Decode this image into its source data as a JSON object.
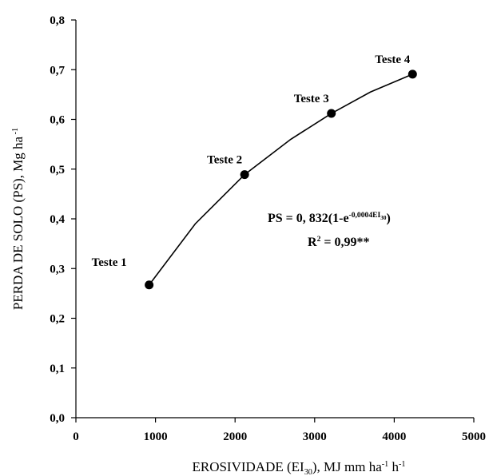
{
  "chart_data": {
    "type": "scatter",
    "x_label": [
      {
        "text": "EROSIVIDADE (EI"
      },
      {
        "text": "30",
        "baseline": "sub"
      },
      {
        "text": "), MJ mm ha"
      },
      {
        "text": "-1",
        "baseline": "super"
      },
      {
        "text": " h"
      },
      {
        "text": "-1",
        "baseline": "super"
      }
    ],
    "y_label": [
      {
        "text": "PERDA DE SOLO (PS), Mg ha"
      },
      {
        "text": " -1",
        "baseline": "super"
      }
    ],
    "annotations": [
      [
        {
          "text": "PS = 0, 832(1-e"
        },
        {
          "text": "-0,0004EI",
          "baseline": "super"
        },
        {
          "text": "30",
          "baseline": "supsub"
        },
        {
          "text": ")"
        }
      ],
      [
        {
          "text": "R"
        },
        {
          "text": "2",
          "baseline": "super"
        },
        {
          "text": " = 0,99**"
        }
      ]
    ],
    "x": [
      920,
      2120,
      3210,
      4230
    ],
    "values": [
      0.267,
      0.489,
      0.612,
      0.691
    ],
    "value_labels": [
      "Teste 1",
      "Teste 2",
      "Teste 3",
      "Teste 4"
    ],
    "color": "#000000",
    "fit": {
      "x": [
        920,
        1500,
        2120,
        2700,
        3210,
        3700,
        4230
      ],
      "values": [
        0.267,
        0.39,
        0.489,
        0.56,
        0.612,
        0.655,
        0.691
      ],
      "color": "#000000"
    },
    "xlim": [
      0,
      5000
    ],
    "xticks": [
      0,
      1000,
      2000,
      3000,
      4000,
      5000
    ],
    "ylim": [
      0,
      0.8
    ],
    "yticks": [
      {
        "value": 0,
        "label": "0,0"
      },
      {
        "value": 0.1,
        "label": "0,1"
      },
      {
        "value": 0.2,
        "label": "0,2"
      },
      {
        "value": 0.3,
        "label": "0,3"
      },
      {
        "value": 0.4,
        "label": "0,4"
      },
      {
        "value": 0.5,
        "label": "0,5"
      },
      {
        "value": 0.6,
        "label": "0,6"
      },
      {
        "value": 0.7,
        "label": "0,7"
      },
      {
        "value": 0.8,
        "label": "0,8"
      }
    ]
  }
}
